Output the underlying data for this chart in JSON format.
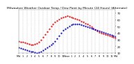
{
  "title": "Milwaukee Weather Outdoor Temp / Dew Point by Minute (24 Hours) (Alternate)",
  "title_fontsize": 3.2,
  "bg_color": "#ffffff",
  "plot_bg_color": "#ffffff",
  "text_color": "#000000",
  "grid_color": "#aaaaaa",
  "temp_color": "#ff0000",
  "dew_color": "#0000cc",
  "ylim": [
    10,
    75
  ],
  "xlim": [
    0,
    1440
  ],
  "yticks": [
    10,
    20,
    30,
    40,
    50,
    60,
    70
  ],
  "ytick_labels": [
    "10",
    "20",
    "30",
    "40",
    "50",
    "60",
    "70"
  ],
  "xtick_positions": [
    0,
    60,
    120,
    180,
    240,
    300,
    360,
    420,
    480,
    540,
    600,
    660,
    720,
    780,
    840,
    900,
    960,
    1020,
    1080,
    1140,
    1200,
    1260,
    1320,
    1380,
    1440
  ],
  "xtick_labels_all": [
    "Mid",
    "1",
    "2",
    "3",
    "4",
    "5",
    "6",
    "7",
    "8",
    "9",
    "10",
    "11",
    "Noon",
    "1",
    "2",
    "3",
    "4",
    "5",
    "6",
    "7",
    "8",
    "9",
    "10",
    "11",
    "Mid"
  ],
  "temp_x": [
    0,
    30,
    60,
    90,
    120,
    150,
    180,
    210,
    240,
    270,
    300,
    330,
    360,
    390,
    420,
    450,
    480,
    510,
    540,
    570,
    600,
    630,
    660,
    690,
    720,
    750,
    780,
    810,
    840,
    870,
    900,
    930,
    960,
    990,
    1020,
    1050,
    1080,
    1110,
    1140,
    1170,
    1200,
    1230,
    1260,
    1290,
    1320,
    1350,
    1380,
    1410,
    1440
  ],
  "temp_y": [
    28,
    27,
    26,
    25,
    24,
    23,
    22,
    22,
    23,
    24,
    26,
    30,
    34,
    38,
    42,
    46,
    50,
    54,
    57,
    59,
    61,
    63,
    64,
    65,
    66,
    65,
    64,
    63,
    62,
    61,
    60,
    58,
    57,
    55,
    53,
    51,
    49,
    47,
    45,
    43,
    41,
    40,
    39,
    38,
    37,
    36,
    35,
    34,
    33
  ],
  "dew_x": [
    0,
    30,
    60,
    90,
    120,
    150,
    180,
    210,
    240,
    270,
    300,
    330,
    360,
    390,
    420,
    450,
    480,
    510,
    540,
    570,
    600,
    630,
    660,
    690,
    720,
    750,
    780,
    810,
    840,
    870,
    900,
    930,
    960,
    990,
    1020,
    1050,
    1080,
    1110,
    1140,
    1170,
    1200,
    1230,
    1260,
    1290,
    1320,
    1350,
    1380,
    1410,
    1440
  ],
  "dew_y": [
    18,
    17,
    16,
    15,
    14,
    13,
    12,
    12,
    11,
    10,
    11,
    12,
    14,
    16,
    18,
    20,
    22,
    24,
    28,
    32,
    36,
    40,
    44,
    46,
    48,
    50,
    52,
    53,
    54,
    54,
    53,
    52,
    51,
    50,
    49,
    48,
    47,
    46,
    45,
    44,
    43,
    42,
    41,
    40,
    39,
    38,
    37,
    36,
    35
  ]
}
